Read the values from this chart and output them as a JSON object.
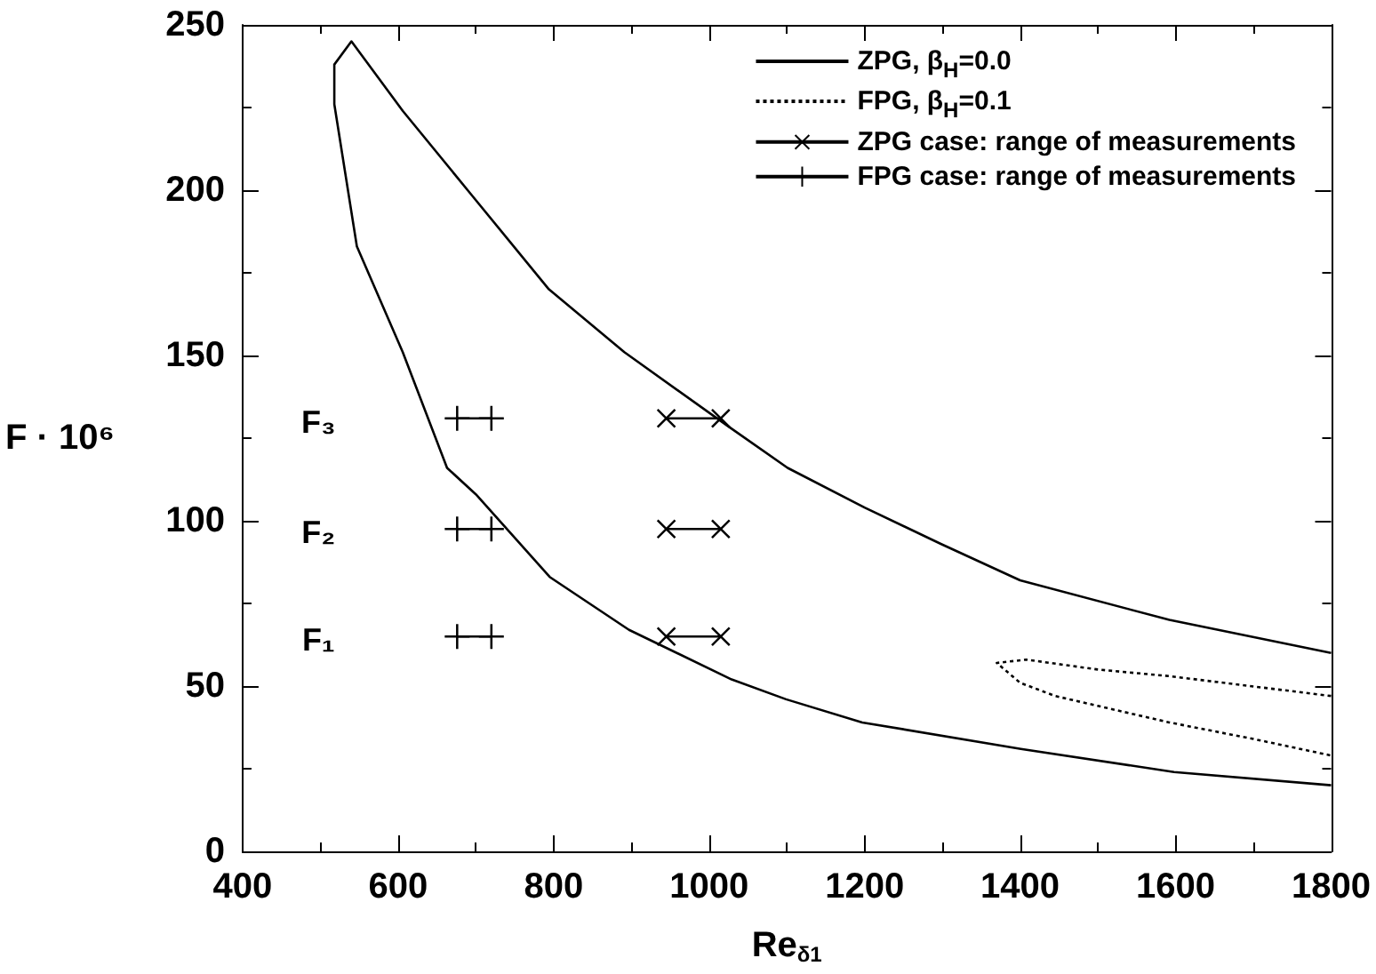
{
  "chart_data": {
    "type": "line",
    "xlabel": "Re$_{δ1}$",
    "ylabel": "F · 10⁶",
    "xlim": [
      400,
      1800
    ],
    "ylim": [
      0,
      250
    ],
    "xticks": [
      400,
      600,
      800,
      1000,
      1200,
      1400,
      1600,
      1800
    ],
    "yticks": [
      0,
      50,
      100,
      150,
      200,
      250
    ],
    "grid": false,
    "legend": "top right",
    "marker": "none",
    "series": [
      {
        "name": "ZPG, β$_{H}$=0.0",
        "color": "#000000",
        "line_style": "solid",
        "x": [
          1800,
          1592,
          1400,
          1298,
          1200,
          1101,
          1022,
          891,
          794,
          693,
          606,
          540,
          518,
          518,
          547,
          606,
          663,
          700,
          795,
          897,
          1029,
          1099,
          1197,
          1401,
          1598,
          1800
        ],
        "values": [
          60,
          70,
          82,
          93,
          104,
          116,
          129,
          151,
          170,
          199,
          224,
          245,
          238,
          226,
          183,
          151,
          116,
          108,
          83,
          67,
          52,
          46,
          39,
          31,
          24,
          20
        ]
      },
      {
        "name": "FPG, β$_{H}$=0.1",
        "color": "#000000",
        "line_style": "dotted",
        "x": [
          1800,
          1592,
          1500,
          1408,
          1370,
          1400,
          1445,
          1500,
          1592,
          1700,
          1800
        ],
        "values": [
          47,
          53,
          55,
          58,
          57,
          51,
          47,
          44,
          39,
          34,
          29
        ]
      },
      {
        "name": "ZPG case: range of measurements",
        "color": "#000000",
        "line_style": "solid",
        "marker": "cross",
        "x": [
          945,
          1015
        ],
        "values": [
          131,
          131
        ]
      },
      {
        "color": "#000000",
        "line_style": "solid",
        "marker": "cross",
        "x": [
          945,
          1015
        ],
        "values": [
          97.5,
          97.5
        ]
      },
      {
        "color": "#000000",
        "line_style": "solid",
        "marker": "cross",
        "x": [
          945,
          1015
        ],
        "values": [
          65,
          65
        ]
      },
      {
        "name": "FPG case: range of measurements",
        "color": "#000000",
        "line_style": "solid",
        "marker": "plus",
        "x": [
          676,
          720
        ],
        "values": [
          131,
          131
        ]
      },
      {
        "color": "#000000",
        "line_style": "solid",
        "marker": "plus",
        "x": [
          676,
          720
        ],
        "values": [
          97.5,
          97.5
        ]
      },
      {
        "color": "#000000",
        "line_style": "solid",
        "marker": "plus",
        "x": [
          676,
          720
        ],
        "values": [
          65,
          65
        ]
      }
    ],
    "annotations": [
      "F₃",
      "F₂",
      "F₁"
    ]
  }
}
